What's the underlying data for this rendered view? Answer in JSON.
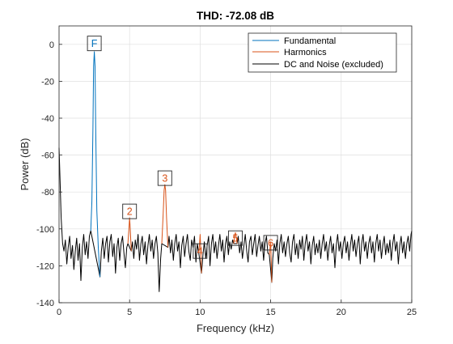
{
  "chart_data": {
    "type": "line",
    "title": "THD: -72.08 dB",
    "xlabel": "Frequency (kHz)",
    "ylabel": "Power (dB)",
    "xlim": [
      0,
      25
    ],
    "ylim": [
      -140,
      10
    ],
    "xticks": [
      0,
      5,
      10,
      15,
      20,
      25
    ],
    "yticks": [
      -140,
      -120,
      -100,
      -80,
      -60,
      -40,
      -20,
      0
    ],
    "grid": true,
    "legend_position": "top-right",
    "series": [
      {
        "name": "Fundamental",
        "color": "#0072BD",
        "points": [
          [
            2.25,
            -101
          ],
          [
            2.33,
            -85
          ],
          [
            2.4,
            -45
          ],
          [
            2.45,
            -12
          ],
          [
            2.5,
            -4
          ],
          [
            2.55,
            -12
          ],
          [
            2.6,
            -45
          ],
          [
            2.68,
            -90
          ],
          [
            2.78,
            -110
          ],
          [
            2.9,
            -126
          ]
        ]
      },
      {
        "name": "Harmonics",
        "color": "#D95319",
        "segments": [
          [
            [
              4.88,
              -108
            ],
            [
              4.96,
              -99
            ],
            [
              5.0,
              -94
            ],
            [
              5.04,
              -99
            ],
            [
              5.12,
              -112
            ]
          ],
          [
            [
              7.28,
              -108
            ],
            [
              7.38,
              -92
            ],
            [
              7.45,
              -79
            ],
            [
              7.5,
              -76
            ],
            [
              7.55,
              -79
            ],
            [
              7.62,
              -94
            ],
            [
              7.72,
              -110
            ]
          ],
          [
            [
              9.9,
              -113
            ],
            [
              9.96,
              -108
            ],
            [
              10.0,
              -103
            ],
            [
              10.04,
              -110
            ],
            [
              10.1,
              -124
            ]
          ],
          [
            [
              12.38,
              -108
            ],
            [
              12.45,
              -104
            ],
            [
              12.5,
              -102
            ],
            [
              12.55,
              -104
            ],
            [
              12.62,
              -108
            ]
          ],
          [
            [
              14.9,
              -114
            ],
            [
              14.96,
              -110
            ],
            [
              15.0,
              -107
            ],
            [
              15.04,
              -118
            ],
            [
              15.08,
              -129
            ]
          ]
        ]
      },
      {
        "name": "DC and Noise (excluded)",
        "color": "#000000",
        "points": [
          [
            0.0,
            -56
          ],
          [
            0.03,
            -63
          ],
          [
            0.08,
            -76
          ],
          [
            0.15,
            -94
          ],
          [
            0.25,
            -108
          ],
          [
            0.35,
            -112
          ],
          [
            0.45,
            -106
          ],
          [
            0.55,
            -119
          ],
          [
            0.65,
            -110
          ],
          [
            0.75,
            -104
          ],
          [
            0.85,
            -116
          ],
          [
            0.95,
            -109
          ],
          [
            1.05,
            -122
          ],
          [
            1.15,
            -112
          ],
          [
            1.25,
            -105
          ],
          [
            1.35,
            -117
          ],
          [
            1.45,
            -108
          ],
          [
            1.55,
            -128
          ],
          [
            1.65,
            -110
          ],
          [
            1.75,
            -103
          ],
          [
            1.85,
            -114
          ],
          [
            1.95,
            -107
          ],
          [
            2.05,
            -116
          ],
          [
            2.15,
            -104
          ],
          [
            2.25,
            -101
          ],
          [
            2.9,
            -126
          ],
          [
            3.0,
            -112
          ],
          [
            3.1,
            -105
          ],
          [
            3.2,
            -116
          ],
          [
            3.3,
            -108
          ],
          [
            3.4,
            -104
          ],
          [
            3.5,
            -118
          ],
          [
            3.6,
            -107
          ],
          [
            3.7,
            -103
          ],
          [
            3.8,
            -115
          ],
          [
            3.9,
            -108
          ],
          [
            4.0,
            -124
          ],
          [
            4.1,
            -110
          ],
          [
            4.2,
            -105
          ],
          [
            4.3,
            -117
          ],
          [
            4.4,
            -108
          ],
          [
            4.5,
            -104
          ],
          [
            4.6,
            -113
          ],
          [
            4.7,
            -121
          ],
          [
            4.8,
            -110
          ],
          [
            4.88,
            -108
          ],
          [
            5.12,
            -112
          ],
          [
            5.2,
            -107
          ],
          [
            5.3,
            -116
          ],
          [
            5.4,
            -106
          ],
          [
            5.5,
            -111
          ],
          [
            5.6,
            -103
          ],
          [
            5.7,
            -117
          ],
          [
            5.8,
            -108
          ],
          [
            5.9,
            -104
          ],
          [
            6.0,
            -114
          ],
          [
            6.1,
            -107
          ],
          [
            6.2,
            -119
          ],
          [
            6.3,
            -109
          ],
          [
            6.4,
            -103
          ],
          [
            6.5,
            -112
          ],
          [
            6.6,
            -106
          ],
          [
            6.7,
            -116
          ],
          [
            6.8,
            -108
          ],
          [
            6.9,
            -104
          ],
          [
            7.0,
            -113
          ],
          [
            7.1,
            -134
          ],
          [
            7.2,
            -116
          ],
          [
            7.28,
            -108
          ],
          [
            7.72,
            -110
          ],
          [
            7.8,
            -104
          ],
          [
            7.9,
            -113
          ],
          [
            8.0,
            -106
          ],
          [
            8.1,
            -117
          ],
          [
            8.2,
            -108
          ],
          [
            8.3,
            -103
          ],
          [
            8.4,
            -112
          ],
          [
            8.5,
            -107
          ],
          [
            8.6,
            -121
          ],
          [
            8.7,
            -109
          ],
          [
            8.8,
            -104
          ],
          [
            8.9,
            -115
          ],
          [
            9.0,
            -108
          ],
          [
            9.1,
            -103
          ],
          [
            9.2,
            -112
          ],
          [
            9.3,
            -117
          ],
          [
            9.4,
            -106
          ],
          [
            9.5,
            -110
          ],
          [
            9.6,
            -104
          ],
          [
            9.7,
            -118
          ],
          [
            9.8,
            -108
          ],
          [
            9.9,
            -113
          ],
          [
            10.1,
            -124
          ],
          [
            10.2,
            -114
          ],
          [
            10.3,
            -107
          ],
          [
            10.4,
            -116
          ],
          [
            10.5,
            -109
          ],
          [
            10.6,
            -104
          ],
          [
            10.7,
            -120
          ],
          [
            10.8,
            -108
          ],
          [
            10.9,
            -103
          ],
          [
            11.0,
            -113
          ],
          [
            11.1,
            -107
          ],
          [
            11.2,
            -116
          ],
          [
            11.3,
            -109
          ],
          [
            11.4,
            -103
          ],
          [
            11.5,
            -112
          ],
          [
            11.6,
            -106
          ],
          [
            11.7,
            -118
          ],
          [
            11.8,
            -108
          ],
          [
            11.9,
            -104
          ],
          [
            12.0,
            -114
          ],
          [
            12.1,
            -107
          ],
          [
            12.2,
            -111
          ],
          [
            12.3,
            -106
          ],
          [
            12.38,
            -108
          ],
          [
            12.62,
            -108
          ],
          [
            12.7,
            -104
          ],
          [
            12.8,
            -113
          ],
          [
            12.9,
            -107
          ],
          [
            13.0,
            -116
          ],
          [
            13.1,
            -109
          ],
          [
            13.2,
            -103
          ],
          [
            13.3,
            -112
          ],
          [
            13.4,
            -118
          ],
          [
            13.5,
            -107
          ],
          [
            13.6,
            -104
          ],
          [
            13.7,
            -114
          ],
          [
            13.8,
            -108
          ],
          [
            13.9,
            -103
          ],
          [
            14.0,
            -115
          ],
          [
            14.1,
            -109
          ],
          [
            14.2,
            -104
          ],
          [
            14.3,
            -112
          ],
          [
            14.4,
            -107
          ],
          [
            14.5,
            -117
          ],
          [
            14.6,
            -108
          ],
          [
            14.7,
            -104
          ],
          [
            14.8,
            -113
          ],
          [
            14.9,
            -114
          ],
          [
            15.08,
            -129
          ],
          [
            15.15,
            -116
          ],
          [
            15.25,
            -108
          ],
          [
            15.35,
            -112
          ],
          [
            15.45,
            -106
          ],
          [
            15.55,
            -119
          ],
          [
            15.65,
            -108
          ],
          [
            15.75,
            -103
          ],
          [
            15.85,
            -113
          ],
          [
            15.95,
            -107
          ],
          [
            16.05,
            -115
          ],
          [
            16.15,
            -108
          ],
          [
            16.25,
            -104
          ],
          [
            16.35,
            -113
          ],
          [
            16.45,
            -118
          ],
          [
            16.55,
            -107
          ],
          [
            16.65,
            -103
          ],
          [
            16.75,
            -114
          ],
          [
            16.85,
            -108
          ],
          [
            16.95,
            -116
          ],
          [
            17.05,
            -106
          ],
          [
            17.15,
            -111
          ],
          [
            17.25,
            -104
          ],
          [
            17.35,
            -117
          ],
          [
            17.45,
            -108
          ],
          [
            17.55,
            -103
          ],
          [
            17.65,
            -112
          ],
          [
            17.75,
            -107
          ],
          [
            17.85,
            -119
          ],
          [
            17.95,
            -109
          ],
          [
            18.05,
            -104
          ],
          [
            18.15,
            -114
          ],
          [
            18.25,
            -108
          ],
          [
            18.35,
            -113
          ],
          [
            18.45,
            -106
          ],
          [
            18.55,
            -116
          ],
          [
            18.65,
            -108
          ],
          [
            18.75,
            -103
          ],
          [
            18.85,
            -112
          ],
          [
            18.95,
            -107
          ],
          [
            19.05,
            -117
          ],
          [
            19.15,
            -109
          ],
          [
            19.25,
            -104
          ],
          [
            19.35,
            -113
          ],
          [
            19.45,
            -108
          ],
          [
            19.55,
            -121
          ],
          [
            19.65,
            -109
          ],
          [
            19.75,
            -103
          ],
          [
            19.85,
            -112
          ],
          [
            19.95,
            -107
          ],
          [
            20.05,
            -116
          ],
          [
            20.15,
            -108
          ],
          [
            20.25,
            -104
          ],
          [
            20.35,
            -113
          ],
          [
            20.45,
            -107
          ],
          [
            20.55,
            -117
          ],
          [
            20.65,
            -109
          ],
          [
            20.75,
            -103
          ],
          [
            20.85,
            -112
          ],
          [
            20.95,
            -106
          ],
          [
            21.05,
            -115
          ],
          [
            21.15,
            -108
          ],
          [
            21.25,
            -104
          ],
          [
            21.35,
            -119
          ],
          [
            21.45,
            -108
          ],
          [
            21.55,
            -103
          ],
          [
            21.65,
            -112
          ],
          [
            21.75,
            -107
          ],
          [
            21.85,
            -116
          ],
          [
            21.95,
            -108
          ],
          [
            22.05,
            -104
          ],
          [
            22.15,
            -113
          ],
          [
            22.25,
            -107
          ],
          [
            22.35,
            -118
          ],
          [
            22.45,
            -108
          ],
          [
            22.55,
            -103
          ],
          [
            22.65,
            -112
          ],
          [
            22.75,
            -106
          ],
          [
            22.85,
            -116
          ],
          [
            22.95,
            -109
          ],
          [
            23.05,
            -104
          ],
          [
            23.15,
            -114
          ],
          [
            23.25,
            -108
          ],
          [
            23.35,
            -113
          ],
          [
            23.45,
            -106
          ],
          [
            23.55,
            -117
          ],
          [
            23.65,
            -108
          ],
          [
            23.75,
            -103
          ],
          [
            23.85,
            -112
          ],
          [
            23.95,
            -107
          ],
          [
            24.05,
            -119
          ],
          [
            24.15,
            -109
          ],
          [
            24.25,
            -104
          ],
          [
            24.35,
            -113
          ],
          [
            24.45,
            -107
          ],
          [
            24.55,
            -116
          ],
          [
            24.65,
            -108
          ],
          [
            24.75,
            -104
          ],
          [
            24.85,
            -112
          ],
          [
            24.95,
            -103
          ],
          [
            25.0,
            -101
          ]
        ]
      }
    ],
    "markers": [
      {
        "label": "F",
        "x": 2.5,
        "y": 0.5,
        "color": "#0072BD"
      },
      {
        "label": "2",
        "x": 5.0,
        "y": -90.5,
        "color": "#D95319"
      },
      {
        "label": "3",
        "x": 7.5,
        "y": -72.5,
        "color": "#D95319"
      },
      {
        "label": "4",
        "x": 10.0,
        "y": -112,
        "color": "#D95319"
      },
      {
        "label": "5",
        "x": 12.5,
        "y": -105,
        "color": "#D95319"
      },
      {
        "label": "6",
        "x": 15.0,
        "y": -107.5,
        "color": "#D95319"
      }
    ]
  }
}
